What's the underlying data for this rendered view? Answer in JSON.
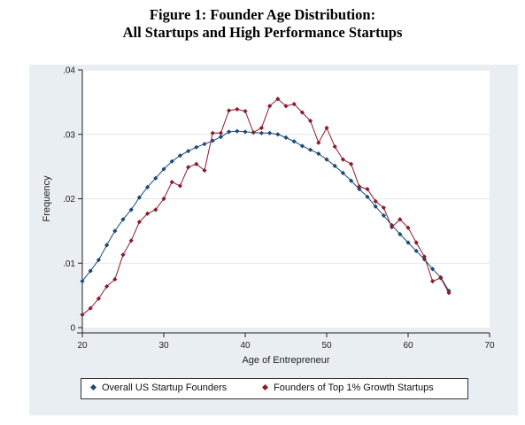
{
  "figure": {
    "title_line1": "Figure 1: Founder Age Distribution:",
    "title_line2": "All Startups and High Performance Startups"
  },
  "colors": {
    "panel_bg": "#e9eef2",
    "plot_bg": "#ffffff",
    "series_overall": "#1a4a7a",
    "series_top": "#8b1a2b",
    "grid": "#e3e8ec"
  },
  "chart_data": {
    "type": "line",
    "xlabel": "Age of Entrepreneur",
    "ylabel": "Frequency",
    "xlim": [
      20,
      70
    ],
    "ylim": [
      0,
      0.04
    ],
    "xticks": [
      20,
      30,
      40,
      50,
      60,
      70
    ],
    "yticks": [
      0,
      0.01,
      0.02,
      0.03,
      0.04
    ],
    "ytick_labels": [
      "0",
      ".01",
      ".02",
      ".03",
      ".04"
    ],
    "grid": "horizontal",
    "legend_position": "bottom",
    "series": [
      {
        "name": "Overall US Startup Founders",
        "marker": "diamond",
        "x": [
          20,
          21,
          22,
          23,
          24,
          25,
          26,
          27,
          28,
          29,
          30,
          31,
          32,
          33,
          34,
          35,
          36,
          37,
          38,
          39,
          40,
          41,
          42,
          43,
          44,
          45,
          46,
          47,
          48,
          49,
          50,
          51,
          52,
          53,
          54,
          55,
          56,
          57,
          58,
          59,
          60,
          61,
          62,
          63,
          64,
          65
        ],
        "values": [
          0.0072,
          0.0088,
          0.0105,
          0.0128,
          0.015,
          0.0168,
          0.0183,
          0.0202,
          0.0218,
          0.0232,
          0.0246,
          0.0258,
          0.0267,
          0.0274,
          0.028,
          0.0285,
          0.029,
          0.0296,
          0.0304,
          0.0305,
          0.0304,
          0.0303,
          0.0302,
          0.0302,
          0.03,
          0.0295,
          0.0289,
          0.0282,
          0.0276,
          0.027,
          0.0261,
          0.0251,
          0.024,
          0.0228,
          0.0215,
          0.0203,
          0.0188,
          0.0174,
          0.0159,
          0.0145,
          0.0132,
          0.0119,
          0.0106,
          0.0091,
          0.0078,
          0.0057
        ]
      },
      {
        "name": "Founders of Top 1% Growth Startups",
        "marker": "diamond",
        "x": [
          20,
          21,
          22,
          23,
          24,
          25,
          26,
          27,
          28,
          29,
          30,
          31,
          32,
          33,
          34,
          35,
          36,
          37,
          38,
          39,
          40,
          41,
          42,
          43,
          44,
          45,
          46,
          47,
          48,
          49,
          50,
          51,
          52,
          53,
          54,
          55,
          56,
          57,
          58,
          59,
          60,
          61,
          62,
          63,
          64,
          65
        ],
        "values": [
          0.002,
          0.003,
          0.0045,
          0.0064,
          0.0075,
          0.0113,
          0.0135,
          0.0164,
          0.0177,
          0.0183,
          0.02,
          0.0226,
          0.022,
          0.0249,
          0.0254,
          0.0244,
          0.0302,
          0.0302,
          0.0337,
          0.0339,
          0.0336,
          0.0303,
          0.031,
          0.0344,
          0.0355,
          0.0344,
          0.0347,
          0.0334,
          0.0321,
          0.0287,
          0.031,
          0.0281,
          0.0261,
          0.0254,
          0.0219,
          0.0215,
          0.0196,
          0.0186,
          0.0156,
          0.0168,
          0.0155,
          0.0132,
          0.011,
          0.0072,
          0.0077,
          0.0054
        ]
      }
    ]
  }
}
